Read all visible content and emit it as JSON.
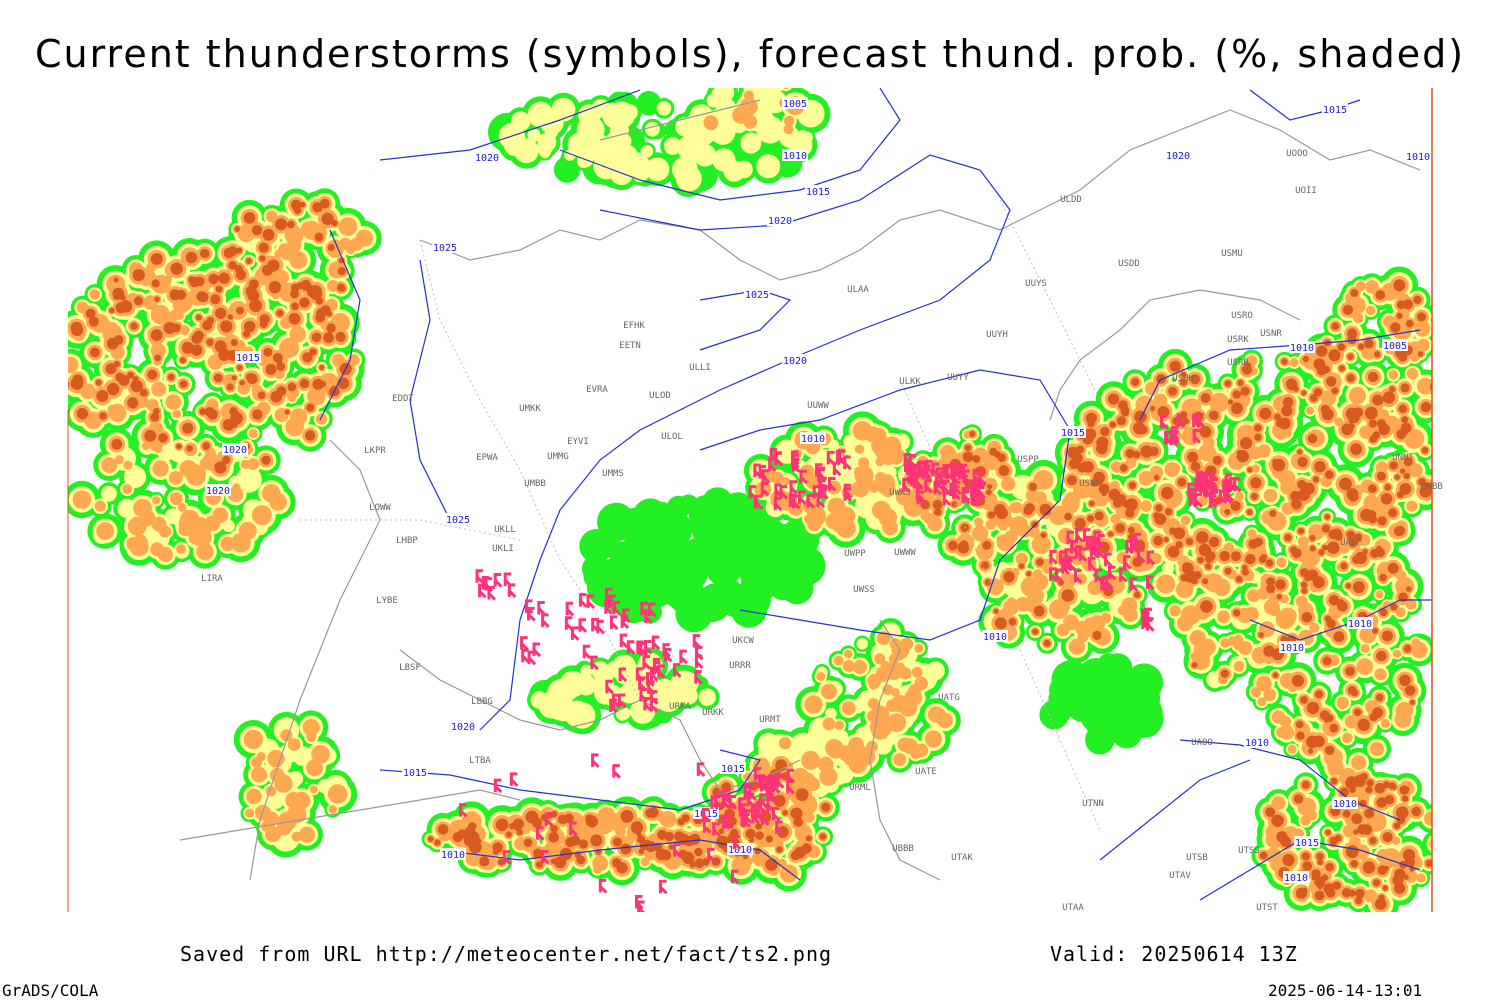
{
  "header": {
    "title": "Current thunderstorms (symbols), forecast thund. prob. (%, shaded)"
  },
  "footer": {
    "source": "Saved from URL http://meteocenter.net/fact/ts2.png",
    "valid": "Valid: 20250614 13Z",
    "software": "GrADS/COLA",
    "timestamp": "2025-06-14-13:01"
  },
  "isobar_labels": [
    1005,
    1010,
    1015,
    1020,
    1020,
    1025,
    1025,
    1020,
    1015,
    1020,
    1020,
    1025,
    1010,
    1015,
    1020,
    1015,
    1010,
    1010,
    1005,
    1010,
    1010,
    1010,
    1010,
    1020,
    1015,
    1015,
    1015,
    1010,
    1010,
    1010,
    1015,
    1010
  ],
  "stations": [
    "EFHK",
    "EETN",
    "EVRA",
    "ULOD",
    "ULLI",
    "UMKK",
    "EYVI",
    "UMMG",
    "EPWA",
    "ULOL",
    "EDDT",
    "LKPR",
    "UMMS",
    "UMBB",
    "LOWW",
    "UKLL",
    "UKLI",
    "LHBP",
    "LIRA",
    "LYBE",
    "LBSF",
    "LBBG",
    "LTBA",
    "UUWW",
    "ULKK",
    "UUYY",
    "UUYH",
    "UUYS",
    "ULAA",
    "ULDD",
    "USDD",
    "USMU",
    "USRO",
    "USRK",
    "USNR",
    "USRR",
    "USHH",
    "USSS",
    "USPP",
    "UWKS",
    "UWWW",
    "UWPP",
    "UWSS",
    "UKCW",
    "URRR",
    "URKA",
    "URKK",
    "URMT",
    "UATG",
    "UATE",
    "UTNN",
    "UAOO",
    "UTAA",
    "UTAK",
    "UBBB",
    "URML",
    "UASP",
    "UNBB",
    "UNNT",
    "UOOO",
    "UOII",
    "UTSS",
    "UTSB",
    "UTAV",
    "UTST"
  ]
}
